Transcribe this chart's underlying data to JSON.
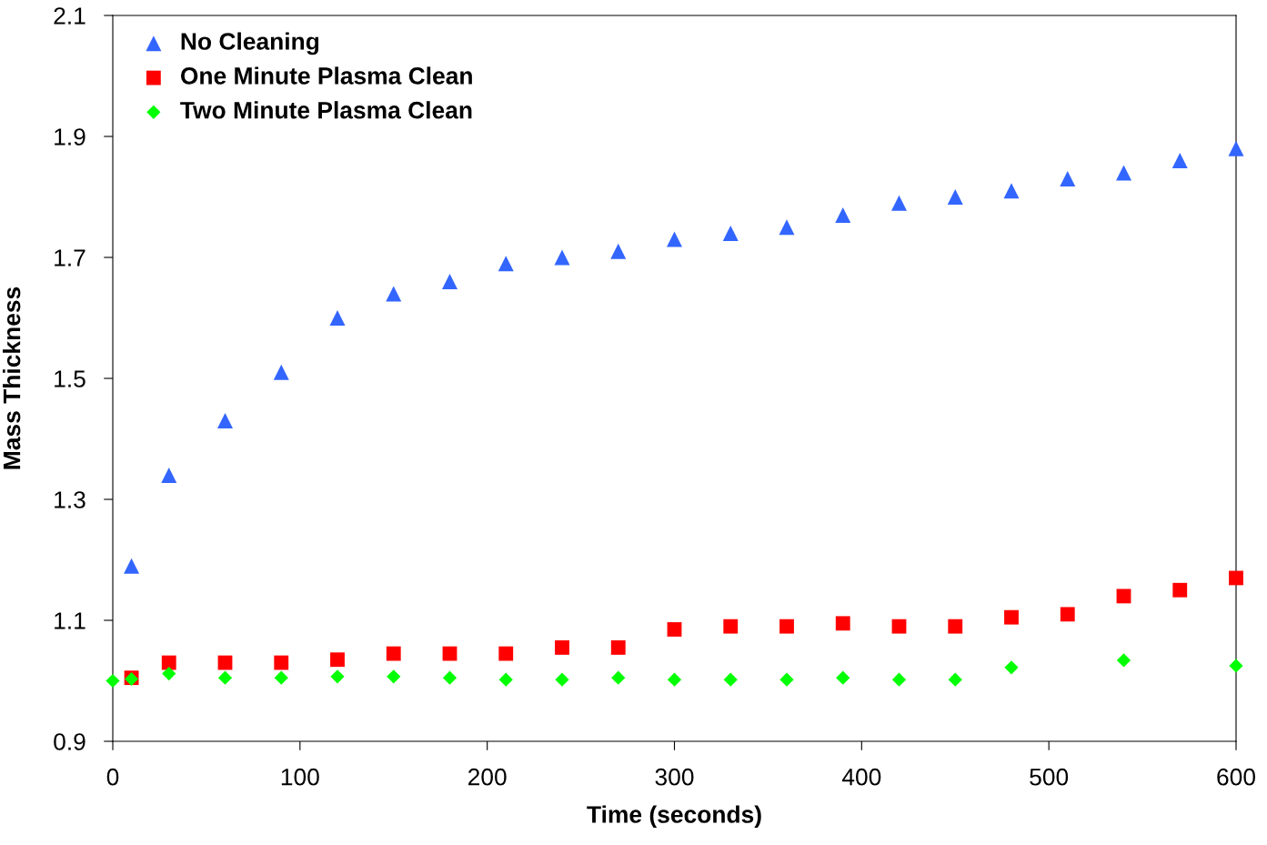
{
  "chart_data": {
    "type": "scatter",
    "xlabel": "Time (seconds)",
    "ylabel": "Mass Thickness",
    "xlim": [
      0,
      600
    ],
    "xticks": [
      0,
      100,
      200,
      300,
      400,
      500,
      600
    ],
    "ylim": [
      0.9,
      2.1
    ],
    "yticks": [
      0.9,
      1.1,
      1.3,
      1.5,
      1.7,
      1.9,
      2.1
    ],
    "grid": false,
    "legend": "top left",
    "series": [
      {
        "name": "No Cleaning",
        "color": "#3366ff",
        "marker": "triangle",
        "x": [
          10,
          30,
          60,
          90,
          120,
          150,
          180,
          210,
          240,
          270,
          300,
          330,
          360,
          390,
          420,
          450,
          480,
          510,
          540,
          570,
          600
        ],
        "values": [
          1.19,
          1.34,
          1.43,
          1.51,
          1.6,
          1.64,
          1.66,
          1.69,
          1.7,
          1.71,
          1.73,
          1.74,
          1.75,
          1.77,
          1.79,
          1.8,
          1.81,
          1.83,
          1.84,
          1.86,
          1.88
        ]
      },
      {
        "name": "One Minute Plasma Clean",
        "color": "#ff0000",
        "marker": "square",
        "x": [
          10,
          30,
          60,
          90,
          120,
          150,
          180,
          210,
          240,
          270,
          300,
          330,
          360,
          390,
          420,
          450,
          480,
          510,
          540,
          570,
          600
        ],
        "values": [
          1.005,
          1.03,
          1.03,
          1.03,
          1.035,
          1.045,
          1.045,
          1.045,
          1.055,
          1.055,
          1.085,
          1.09,
          1.09,
          1.095,
          1.09,
          1.09,
          1.105,
          1.11,
          1.14,
          1.15,
          1.17
        ]
      },
      {
        "name": "Two Minute Plasma Clean",
        "color": "#00ff00",
        "marker": "diamond",
        "x": [
          0,
          10,
          30,
          60,
          90,
          120,
          150,
          180,
          210,
          240,
          270,
          300,
          330,
          360,
          390,
          420,
          450,
          480,
          540,
          600
        ],
        "values": [
          1.0,
          1.003,
          1.012,
          1.005,
          1.005,
          1.007,
          1.007,
          1.005,
          1.002,
          1.002,
          1.005,
          1.002,
          1.002,
          1.002,
          1.005,
          1.002,
          1.002,
          1.022,
          1.034,
          1.025
        ]
      }
    ]
  }
}
